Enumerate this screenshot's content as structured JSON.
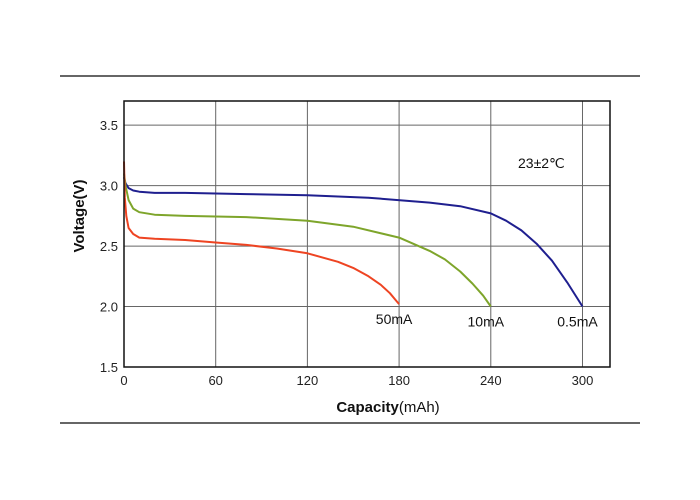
{
  "chart_data": {
    "type": "line",
    "xlabel_bold": "Capacity",
    "xlabel_unit": "(mAh)",
    "ylabel": "Voltage(V)",
    "annotation": "23±2℃",
    "xlim": [
      0,
      318
    ],
    "ylim": [
      1.5,
      3.7
    ],
    "x_ticks": [
      0,
      60,
      120,
      180,
      240,
      300
    ],
    "x_tick_labels": [
      "0",
      "60",
      "120",
      "180",
      "240",
      "300"
    ],
    "y_ticks": [
      1.5,
      2.0,
      2.5,
      3.0,
      3.5
    ],
    "y_tick_labels": [
      "1.5",
      "2.0",
      "2.5",
      "3.0",
      "3.5"
    ],
    "grid": true,
    "series": [
      {
        "name": "0.5mA",
        "color": "#1f1f8f",
        "x": [
          0,
          1,
          3,
          6,
          10,
          20,
          40,
          80,
          120,
          160,
          200,
          220,
          240,
          250,
          260,
          270,
          280,
          290,
          300
        ],
        "y": [
          3.07,
          3.02,
          2.98,
          2.96,
          2.95,
          2.94,
          2.94,
          2.93,
          2.92,
          2.9,
          2.86,
          2.83,
          2.77,
          2.71,
          2.63,
          2.52,
          2.38,
          2.2,
          2.0
        ]
      },
      {
        "name": "10mA",
        "color": "#7ea52b",
        "x": [
          0,
          1,
          3,
          6,
          10,
          20,
          40,
          80,
          120,
          150,
          180,
          200,
          210,
          220,
          228,
          235,
          240
        ],
        "y": [
          3.1,
          3.0,
          2.88,
          2.81,
          2.78,
          2.76,
          2.75,
          2.74,
          2.71,
          2.66,
          2.57,
          2.46,
          2.39,
          2.29,
          2.19,
          2.09,
          2.0
        ]
      },
      {
        "name": "50mA",
        "color": "#ee4422",
        "x": [
          0,
          0.5,
          1.5,
          3,
          6,
          10,
          20,
          40,
          60,
          80,
          100,
          120,
          140,
          150,
          160,
          168,
          174,
          178,
          180
        ],
        "y": [
          3.2,
          2.9,
          2.75,
          2.65,
          2.6,
          2.57,
          2.56,
          2.55,
          2.53,
          2.51,
          2.48,
          2.44,
          2.37,
          2.32,
          2.25,
          2.18,
          2.11,
          2.05,
          2.02
        ]
      }
    ]
  }
}
